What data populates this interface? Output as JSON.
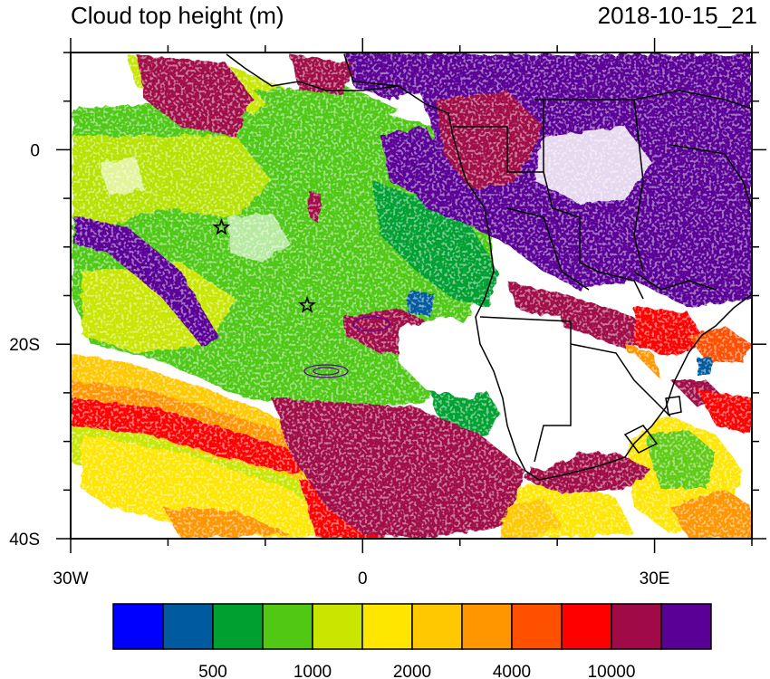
{
  "header": {
    "title": "Cloud top height (m)",
    "timestamp": "2018-10-15_21"
  },
  "axes": {
    "x_ticks": [
      {
        "lon": -30,
        "label": "30W"
      },
      {
        "lon": 0,
        "label": "0"
      },
      {
        "lon": 30,
        "label": "30E"
      }
    ],
    "y_ticks": [
      {
        "lat": 0,
        "label": "0"
      },
      {
        "lat": -20,
        "label": "20S"
      },
      {
        "lat": -40,
        "label": "40S"
      }
    ],
    "lon_range": [
      -30,
      40
    ],
    "lat_range": [
      -40,
      10
    ]
  },
  "markers": [
    {
      "name": "station-star",
      "lon": -14.5,
      "lat": -8
    },
    {
      "name": "station-star",
      "lon": -5.7,
      "lat": -16
    }
  ],
  "colorbar": {
    "colors": [
      "#0000ff",
      "#005aa0",
      "#00a030",
      "#50c814",
      "#c8e600",
      "#ffe600",
      "#ffc800",
      "#ff9600",
      "#ff5000",
      "#ff0000",
      "#a00a46",
      "#5a0096"
    ],
    "labels": [
      {
        "after_box": 2,
        "text": "500"
      },
      {
        "after_box": 4,
        "text": "1000"
      },
      {
        "after_box": 6,
        "text": "2000"
      },
      {
        "after_box": 8,
        "text": "4000"
      },
      {
        "after_box": 10,
        "text": "10000"
      }
    ]
  }
}
